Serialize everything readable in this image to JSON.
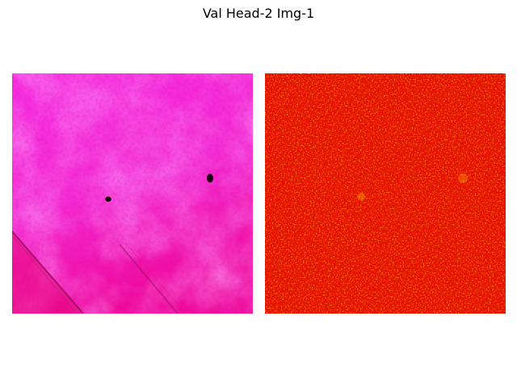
{
  "figure": {
    "title": "Val Head-2 Img-1"
  },
  "panels": [
    {
      "kind": "tissue-image",
      "colors": {
        "base": "#f21ccc",
        "light": "#f545ea",
        "dark": "#e3067a",
        "spot": "#1a0010",
        "streak": "#9a1060"
      }
    },
    {
      "kind": "heatmap",
      "colormap": "hot",
      "colors": {
        "base": "#e81000",
        "dark": "#b80000",
        "mid": "#ff3a00",
        "bright": "#ffd000"
      }
    }
  ]
}
